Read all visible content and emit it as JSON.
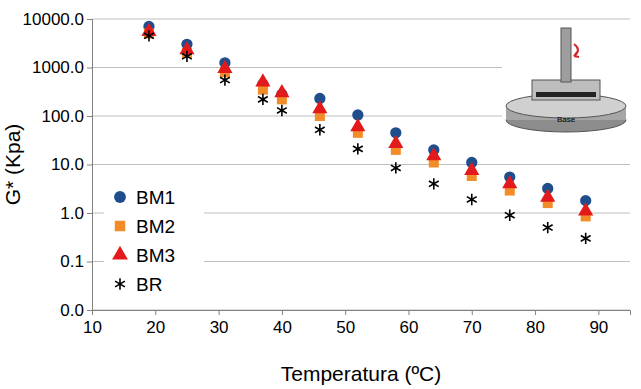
{
  "chart_data": {
    "type": "scatter",
    "x_label": "Temperatura (ºC)",
    "y_label": "G* (Kpa)",
    "annotation": "Base",
    "x": [
      19,
      25,
      31,
      37,
      40,
      46,
      52,
      58,
      64,
      70,
      76,
      82,
      88
    ],
    "series": [
      {
        "name": "BM1",
        "color": "#1f4e8c",
        "marker": "circle",
        "values": [
          7000,
          3000,
          1250,
          450,
          280,
          230,
          105,
          45,
          20,
          11,
          5.5,
          3.2,
          1.8
        ]
      },
      {
        "name": "BM2",
        "color": "#f28c28",
        "marker": "square",
        "values": [
          5000,
          2000,
          800,
          350,
          220,
          100,
          45,
          20,
          11,
          5.8,
          2.9,
          1.6,
          0.85
        ]
      },
      {
        "name": "BM3",
        "color": "#e31a1c",
        "marker": "triangle",
        "values": [
          5500,
          2300,
          950,
          500,
          300,
          140,
          60,
          27,
          15,
          7.5,
          4,
          2.1,
          1.1
        ]
      },
      {
        "name": "BR",
        "color": "#000000",
        "marker": "asterisk",
        "values": [
          4500,
          1700,
          550,
          220,
          130,
          52,
          21,
          8.5,
          4,
          1.9,
          0.9,
          0.5,
          0.3
        ]
      }
    ],
    "xlim": [
      10,
      95
    ],
    "xticks": [
      10,
      20,
      30,
      40,
      50,
      60,
      70,
      80,
      90
    ],
    "ylim": [
      0.01,
      10000
    ],
    "yticks": [
      {
        "value": 0.01,
        "label": "0.0"
      },
      0.1,
      {
        "value": 1,
        "label": "1.0"
      },
      {
        "value": 10,
        "label": "10.0"
      },
      {
        "value": 100,
        "label": "100.0"
      },
      {
        "value": 1000,
        "label": "1000.0"
      },
      {
        "value": 10000,
        "label": "10000.0"
      }
    ],
    "log": "y",
    "grid": true,
    "legend": "lower left"
  }
}
